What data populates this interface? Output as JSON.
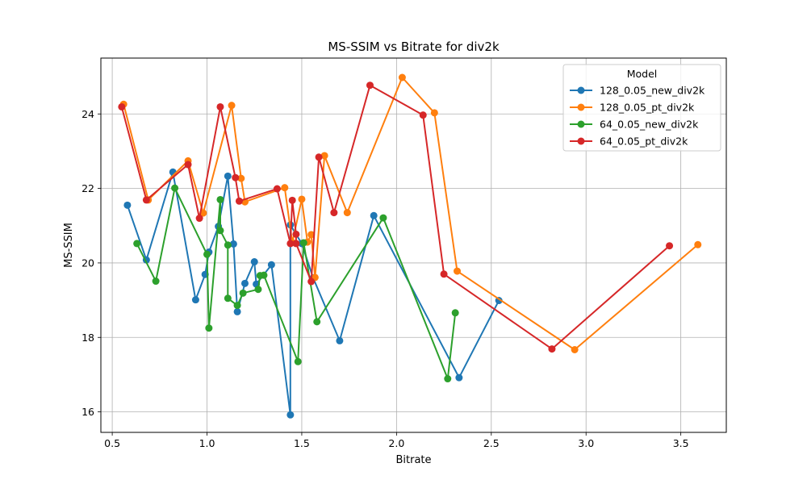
{
  "chart_data": {
    "type": "line",
    "title": "MS-SSIM vs Bitrate for div2k",
    "xlabel": "Bitrate",
    "ylabel": "MS-SSIM",
    "xlim": [
      0.44,
      3.74
    ],
    "ylim": [
      15.45,
      25.5
    ],
    "xticks": [
      0.5,
      1.0,
      1.5,
      2.0,
      2.5,
      3.0,
      3.5
    ],
    "xtick_labels": [
      "0.5",
      "1.0",
      "1.5",
      "2.0",
      "2.5",
      "3.0",
      "3.5"
    ],
    "yticks": [
      16,
      18,
      20,
      22,
      24
    ],
    "ytick_labels": [
      "16",
      "18",
      "20",
      "22",
      "24"
    ],
    "grid": true,
    "legend_title": "Model",
    "legend_position": "top-right",
    "series": [
      {
        "name": "128_0.05_new_div2k",
        "color": "#1f77b4",
        "points": [
          [
            0.58,
            21.55
          ],
          [
            0.68,
            20.08
          ],
          [
            0.82,
            22.44
          ],
          [
            0.94,
            19.01
          ],
          [
            0.99,
            19.69
          ],
          [
            1.01,
            20.29
          ],
          [
            1.06,
            20.98
          ],
          [
            1.11,
            22.33
          ],
          [
            1.14,
            20.51
          ],
          [
            1.16,
            18.69
          ],
          [
            1.2,
            19.45
          ],
          [
            1.25,
            20.03
          ],
          [
            1.26,
            19.43
          ],
          [
            1.34,
            19.95
          ],
          [
            1.44,
            15.92
          ],
          [
            1.44,
            21.02
          ],
          [
            1.5,
            20.52
          ],
          [
            1.56,
            19.6
          ],
          [
            1.7,
            17.91
          ],
          [
            1.88,
            21.27
          ],
          [
            2.33,
            16.92
          ],
          [
            2.54,
            18.99
          ]
        ]
      },
      {
        "name": "128_0.05_pt_div2k",
        "color": "#ff7f0e",
        "points": [
          [
            0.56,
            24.26
          ],
          [
            0.69,
            21.69
          ],
          [
            0.9,
            22.74
          ],
          [
            0.98,
            21.34
          ],
          [
            1.13,
            24.23
          ],
          [
            1.18,
            22.27
          ],
          [
            1.2,
            21.64
          ],
          [
            1.41,
            22.02
          ],
          [
            1.45,
            20.55
          ],
          [
            1.5,
            21.71
          ],
          [
            1.53,
            20.56
          ],
          [
            1.55,
            20.76
          ],
          [
            1.57,
            19.61
          ],
          [
            1.62,
            22.88
          ],
          [
            1.74,
            21.35
          ],
          [
            2.03,
            24.98
          ],
          [
            2.2,
            24.03
          ],
          [
            2.32,
            19.78
          ],
          [
            2.94,
            17.67
          ],
          [
            3.59,
            20.49
          ]
        ]
      },
      {
        "name": "64_0.05_new_div2k",
        "color": "#2ca02c",
        "points": [
          [
            0.63,
            20.52
          ],
          [
            0.73,
            19.51
          ],
          [
            0.83,
            22.01
          ],
          [
            1.0,
            20.23
          ],
          [
            1.01,
            18.25
          ],
          [
            1.07,
            21.7
          ],
          [
            1.07,
            20.87
          ],
          [
            1.11,
            20.48
          ],
          [
            1.11,
            19.05
          ],
          [
            1.16,
            18.86
          ],
          [
            1.19,
            19.19
          ],
          [
            1.27,
            19.29
          ],
          [
            1.28,
            19.66
          ],
          [
            1.3,
            19.67
          ],
          [
            1.48,
            17.35
          ],
          [
            1.51,
            20.54
          ],
          [
            1.58,
            18.42
          ],
          [
            1.93,
            21.21
          ],
          [
            2.27,
            16.89
          ],
          [
            2.31,
            18.66
          ]
        ]
      },
      {
        "name": "64_0.05_pt_div2k",
        "color": "#d62728",
        "points": [
          [
            0.55,
            24.19
          ],
          [
            0.68,
            21.69
          ],
          [
            0.9,
            22.64
          ],
          [
            0.96,
            21.2
          ],
          [
            1.07,
            24.19
          ],
          [
            1.15,
            22.29
          ],
          [
            1.17,
            21.66
          ],
          [
            1.37,
            21.99
          ],
          [
            1.44,
            20.52
          ],
          [
            1.45,
            21.68
          ],
          [
            1.47,
            20.77
          ],
          [
            1.47,
            20.52
          ],
          [
            1.55,
            19.5
          ],
          [
            1.59,
            22.84
          ],
          [
            1.67,
            21.35
          ],
          [
            1.86,
            24.77
          ],
          [
            2.14,
            23.97
          ],
          [
            2.25,
            19.7
          ],
          [
            2.82,
            17.69
          ],
          [
            3.44,
            20.46
          ]
        ]
      }
    ]
  }
}
